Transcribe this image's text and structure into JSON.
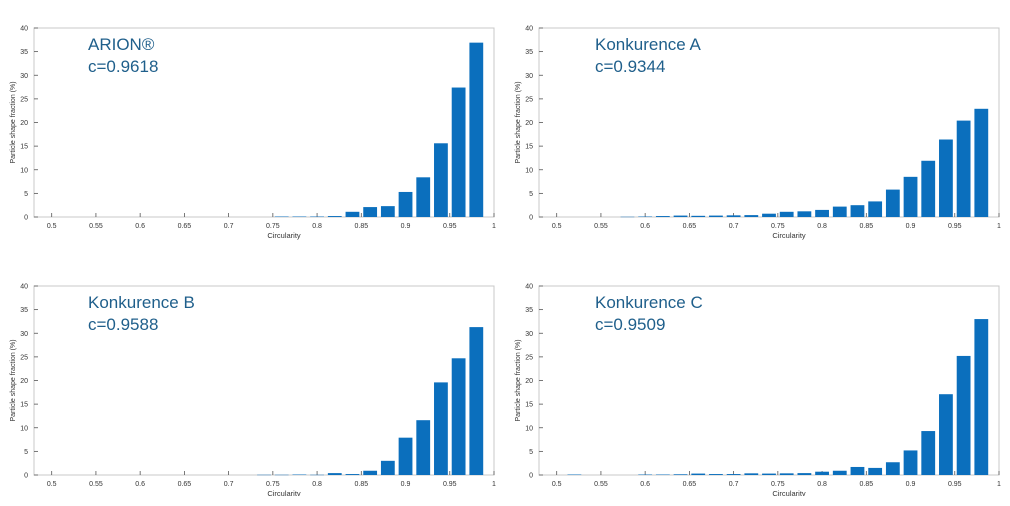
{
  "chart_data": [
    {
      "type": "bar",
      "annotation": {
        "line1": "ARION®",
        "line2": "c=0.9618"
      },
      "xlabel": "Circularity",
      "ylabel": "Particle shape fraction (%)",
      "xlim": [
        0.48,
        1.0
      ],
      "ylim": [
        0,
        40
      ],
      "xticks": [
        "0.5",
        "0.55",
        "0.6",
        "0.65",
        "0.7",
        "0.75",
        "0.8",
        "0.85",
        "0.9",
        "0.95",
        "1"
      ],
      "yticks": [
        "0",
        "5",
        "10",
        "15",
        "20",
        "25",
        "30",
        "35",
        "40"
      ],
      "x": [
        0.76,
        0.78,
        0.8,
        0.82,
        0.84,
        0.86,
        0.88,
        0.9,
        0.92,
        0.94,
        0.96,
        0.98
      ],
      "values": [
        0.1,
        0.1,
        0.1,
        0.2,
        1.1,
        2.1,
        2.3,
        5.3,
        8.4,
        15.6,
        27.4,
        36.9
      ],
      "color": "#0b6fbd"
    },
    {
      "type": "bar",
      "annotation": {
        "line1": "Konkurence A",
        "line2": "c=0.9344"
      },
      "xlabel": "Circularity",
      "ylabel": "Particle shape fraction (%)",
      "xlim": [
        0.48,
        1.0
      ],
      "ylim": [
        0,
        40
      ],
      "xticks": [
        "0.5",
        "0.55",
        "0.6",
        "0.65",
        "0.7",
        "0.75",
        "0.8",
        "0.85",
        "0.9",
        "0.95",
        "1"
      ],
      "yticks": [
        "0",
        "5",
        "10",
        "15",
        "20",
        "25",
        "30",
        "35",
        "40"
      ],
      "x": [
        0.58,
        0.6,
        0.62,
        0.64,
        0.66,
        0.68,
        0.7,
        0.72,
        0.74,
        0.76,
        0.78,
        0.8,
        0.82,
        0.84,
        0.86,
        0.88,
        0.9,
        0.92,
        0.94,
        0.96,
        0.98
      ],
      "values": [
        0.05,
        0.1,
        0.2,
        0.3,
        0.25,
        0.3,
        0.35,
        0.4,
        0.7,
        1.1,
        1.2,
        1.5,
        2.2,
        2.5,
        3.3,
        5.8,
        8.5,
        11.9,
        16.4,
        20.4,
        22.9
      ],
      "color": "#0b6fbd"
    },
    {
      "type": "bar",
      "annotation": {
        "line1": "Konkurence B",
        "line2": "c=0.9588"
      },
      "xlabel": "Circularity",
      "ylabel": "Particle shape fraction (%)",
      "xlim": [
        0.48,
        1.0
      ],
      "ylim": [
        0,
        40
      ],
      "xticks": [
        "0.5",
        "0.55",
        "0.6",
        "0.65",
        "0.7",
        "0.75",
        "0.8",
        "0.85",
        "0.9",
        "0.95",
        "1"
      ],
      "yticks": [
        "0",
        "5",
        "10",
        "15",
        "20",
        "25",
        "30",
        "35",
        "40"
      ],
      "x": [
        0.74,
        0.76,
        0.78,
        0.8,
        0.82,
        0.84,
        0.86,
        0.88,
        0.9,
        0.92,
        0.94,
        0.96,
        0.98
      ],
      "values": [
        0.05,
        0.05,
        0.1,
        0.05,
        0.4,
        0.2,
        0.9,
        3.0,
        7.9,
        11.6,
        19.6,
        24.7,
        31.3
      ],
      "color": "#0b6fbd"
    },
    {
      "type": "bar",
      "annotation": {
        "line1": "Konkurence C",
        "line2": "c=0.9509"
      },
      "xlabel": "Circularity",
      "ylabel": "Particle shape fraction (%)",
      "xlim": [
        0.48,
        1.0
      ],
      "ylim": [
        0,
        40
      ],
      "xticks": [
        "0.5",
        "0.55",
        "0.6",
        "0.65",
        "0.7",
        "0.75",
        "0.8",
        "0.85",
        "0.9",
        "0.95",
        "1"
      ],
      "yticks": [
        "0",
        "5",
        "10",
        "15",
        "20",
        "25",
        "30",
        "35",
        "40"
      ],
      "x": [
        0.52,
        0.6,
        0.62,
        0.64,
        0.66,
        0.68,
        0.7,
        0.72,
        0.74,
        0.76,
        0.78,
        0.8,
        0.82,
        0.84,
        0.86,
        0.88,
        0.9,
        0.92,
        0.94,
        0.96,
        0.98
      ],
      "values": [
        0.1,
        0.1,
        0.1,
        0.15,
        0.3,
        0.2,
        0.2,
        0.35,
        0.3,
        0.35,
        0.4,
        0.7,
        0.9,
        1.7,
        1.5,
        2.7,
        5.2,
        9.3,
        17.1,
        25.2,
        33.0
      ],
      "color": "#0b6fbd"
    }
  ]
}
